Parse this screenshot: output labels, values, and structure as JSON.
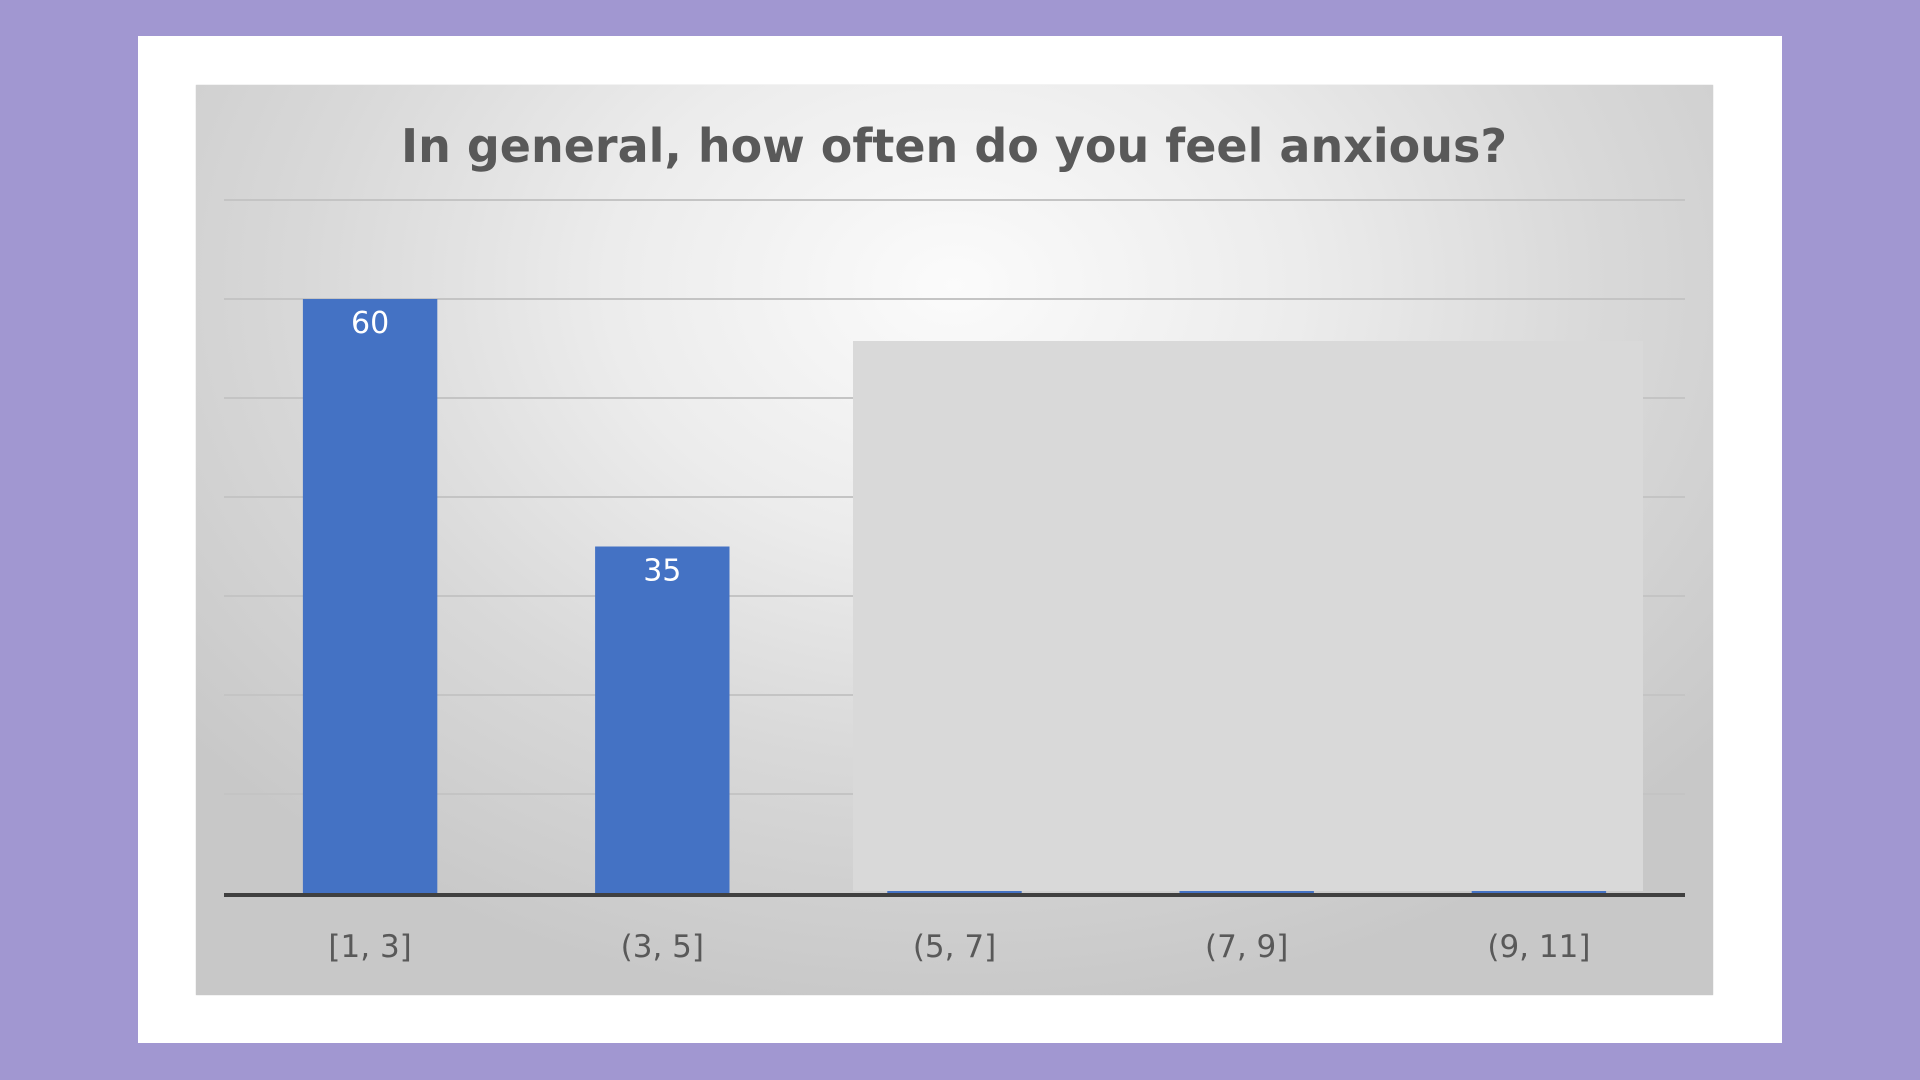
{
  "chart_data": {
    "type": "bar",
    "title": "In general, how often do you feel anxious?",
    "categories": [
      "[1, 3]",
      "(3, 5]",
      "(5, 7]",
      "(7, 9]",
      "(9, 11]"
    ],
    "values": [
      60,
      35,
      0,
      0,
      0
    ],
    "data_labels": [
      "60",
      "35",
      "",
      "",
      ""
    ],
    "ylim": [
      0,
      70
    ],
    "y_gridline_step": 10,
    "grid": true,
    "bar_color": "#4472c4",
    "overlay_color": "#d9d9d9",
    "overlay_covers_categories": [
      "(5, 7]",
      "(7, 9]",
      "(9, 11]"
    ]
  }
}
